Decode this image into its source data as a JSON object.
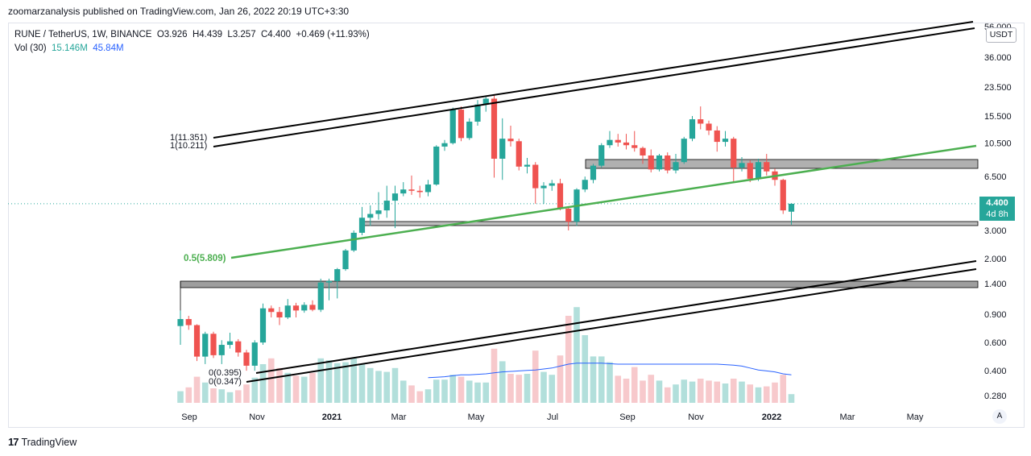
{
  "header": {
    "published": "zoomarzanalysis published on TradingView.com, Jan 26, 2022 20:19 UTC+3:30"
  },
  "legend": {
    "symbol": "RUNE / TetherUS, 1W, BINANCE",
    "open": "O3.926",
    "high": "H4.439",
    "low": "L3.257",
    "close": "C4.400",
    "change": "+0.469 (+11.93%)",
    "vol_label": "Vol (30)",
    "vol_value": "15.146M",
    "vol_ma": "45.84M"
  },
  "currency_button": "USDT",
  "auto_button": "A",
  "price_tag": {
    "price": "4.400",
    "countdown": "4d 8h"
  },
  "footer": {
    "brand": "TradingView"
  },
  "colors": {
    "up": "#26a69a",
    "down": "#ef5350",
    "up_vol": "#b2dfdb",
    "down_vol": "#f7c9cc",
    "channel": "#000000",
    "trend": "#4caf50",
    "vol_ma": "#2962ff",
    "zone": "#9e9e9e"
  },
  "chart_data": {
    "type": "candlestick",
    "scale": "log",
    "y_ticks": [
      "56.000",
      "36.000",
      "23.500",
      "15.500",
      "10.500",
      "6.500",
      "4.400",
      "3.000",
      "2.000",
      "1.400",
      "0.900",
      "0.600",
      "0.400",
      "0.280"
    ],
    "x_ticks": [
      {
        "label": "Sep",
        "bold": false
      },
      {
        "label": "Nov",
        "bold": false
      },
      {
        "label": "2021",
        "bold": true
      },
      {
        "label": "Mar",
        "bold": false
      },
      {
        "label": "May",
        "bold": false
      },
      {
        "label": "Jul",
        "bold": false
      },
      {
        "label": "Sep",
        "bold": false
      },
      {
        "label": "Nov",
        "bold": false
      },
      {
        "label": "2022",
        "bold": true
      },
      {
        "label": "Mar",
        "bold": false
      },
      {
        "label": "May",
        "bold": false
      }
    ],
    "annotations": {
      "fib_top_1": "1(11.351)",
      "fib_top_2": "1(10.211)",
      "fib_mid": "0.5(5.809)",
      "fib_bot_1": "0(0.395)",
      "fib_bot_2": "0(0.347)"
    },
    "candles": [
      {
        "o": 0.76,
        "h": 0.95,
        "l": 0.58,
        "c": 0.84,
        "v": 12
      },
      {
        "o": 0.84,
        "h": 0.88,
        "l": 0.72,
        "c": 0.77,
        "v": 16
      },
      {
        "o": 0.77,
        "h": 0.78,
        "l": 0.46,
        "c": 0.49,
        "v": 27
      },
      {
        "o": 0.49,
        "h": 0.7,
        "l": 0.44,
        "c": 0.68,
        "v": 21
      },
      {
        "o": 0.68,
        "h": 0.7,
        "l": 0.48,
        "c": 0.5,
        "v": 15
      },
      {
        "o": 0.5,
        "h": 0.62,
        "l": 0.44,
        "c": 0.58,
        "v": 14
      },
      {
        "o": 0.58,
        "h": 0.69,
        "l": 0.55,
        "c": 0.61,
        "v": 11
      },
      {
        "o": 0.61,
        "h": 0.63,
        "l": 0.49,
        "c": 0.52,
        "v": 13
      },
      {
        "o": 0.52,
        "h": 0.54,
        "l": 0.4,
        "c": 0.43,
        "v": 19
      },
      {
        "o": 0.43,
        "h": 0.62,
        "l": 0.4,
        "c": 0.6,
        "v": 26
      },
      {
        "o": 0.6,
        "h": 1.05,
        "l": 0.58,
        "c": 0.98,
        "v": 40
      },
      {
        "o": 0.98,
        "h": 1.02,
        "l": 0.86,
        "c": 0.93,
        "v": 46
      },
      {
        "o": 0.93,
        "h": 1.0,
        "l": 0.77,
        "c": 0.86,
        "v": 36
      },
      {
        "o": 0.86,
        "h": 1.12,
        "l": 0.84,
        "c": 1.02,
        "v": 31
      },
      {
        "o": 1.02,
        "h": 1.06,
        "l": 0.86,
        "c": 0.95,
        "v": 28
      },
      {
        "o": 0.95,
        "h": 1.07,
        "l": 0.92,
        "c": 1.03,
        "v": 27
      },
      {
        "o": 1.03,
        "h": 1.1,
        "l": 0.94,
        "c": 0.96,
        "v": 31
      },
      {
        "o": 0.96,
        "h": 1.5,
        "l": 0.93,
        "c": 1.42,
        "v": 46
      },
      {
        "o": 1.42,
        "h": 1.5,
        "l": 1.1,
        "c": 1.45,
        "v": 44
      },
      {
        "o": 1.45,
        "h": 1.75,
        "l": 1.13,
        "c": 1.72,
        "v": 41
      },
      {
        "o": 1.72,
        "h": 2.3,
        "l": 1.68,
        "c": 2.25,
        "v": 42
      },
      {
        "o": 2.25,
        "h": 3.0,
        "l": 2.2,
        "c": 2.9,
        "v": 46
      },
      {
        "o": 2.9,
        "h": 4.2,
        "l": 2.8,
        "c": 3.6,
        "v": 40
      },
      {
        "o": 3.6,
        "h": 4.3,
        "l": 3.2,
        "c": 3.8,
        "v": 36
      },
      {
        "o": 3.8,
        "h": 5.2,
        "l": 3.5,
        "c": 4.0,
        "v": 33
      },
      {
        "o": 4.0,
        "h": 5.7,
        "l": 3.6,
        "c": 4.6,
        "v": 32
      },
      {
        "o": 4.6,
        "h": 5.7,
        "l": 3.1,
        "c": 5.1,
        "v": 36
      },
      {
        "o": 5.1,
        "h": 6.0,
        "l": 4.9,
        "c": 5.4,
        "v": 23
      },
      {
        "o": 5.4,
        "h": 6.6,
        "l": 5.0,
        "c": 5.3,
        "v": 18
      },
      {
        "o": 5.3,
        "h": 5.7,
        "l": 4.8,
        "c": 5.2,
        "v": 12
      },
      {
        "o": 5.2,
        "h": 6.2,
        "l": 4.9,
        "c": 5.8,
        "v": 14
      },
      {
        "o": 5.8,
        "h": 10.2,
        "l": 5.7,
        "c": 10.0,
        "v": 24
      },
      {
        "o": 10.0,
        "h": 11.0,
        "l": 9.4,
        "c": 10.5,
        "v": 24
      },
      {
        "o": 10.5,
        "h": 17.5,
        "l": 10.3,
        "c": 17.0,
        "v": 29
      },
      {
        "o": 17.0,
        "h": 17.8,
        "l": 10.8,
        "c": 11.3,
        "v": 27
      },
      {
        "o": 11.3,
        "h": 15.0,
        "l": 11.0,
        "c": 14.3,
        "v": 23
      },
      {
        "o": 14.3,
        "h": 19.5,
        "l": 13.5,
        "c": 18.3,
        "v": 21
      },
      {
        "o": 18.3,
        "h": 20.5,
        "l": 16.5,
        "c": 19.9,
        "v": 21
      },
      {
        "o": 19.9,
        "h": 21.0,
        "l": 6.4,
        "c": 8.4,
        "v": 56
      },
      {
        "o": 8.4,
        "h": 15.0,
        "l": 6.2,
        "c": 11.2,
        "v": 43
      },
      {
        "o": 11.2,
        "h": 13.5,
        "l": 10.0,
        "c": 10.8,
        "v": 30
      },
      {
        "o": 10.8,
        "h": 11.2,
        "l": 7.1,
        "c": 7.5,
        "v": 29
      },
      {
        "o": 7.5,
        "h": 8.5,
        "l": 6.8,
        "c": 7.7,
        "v": 30
      },
      {
        "o": 7.7,
        "h": 8.0,
        "l": 4.4,
        "c": 5.5,
        "v": 54
      },
      {
        "o": 5.5,
        "h": 6.0,
        "l": 4.4,
        "c": 5.7,
        "v": 32
      },
      {
        "o": 5.7,
        "h": 6.2,
        "l": 5.3,
        "c": 5.9,
        "v": 29
      },
      {
        "o": 5.9,
        "h": 6.3,
        "l": 4.0,
        "c": 4.1,
        "v": 49
      },
      {
        "o": 4.1,
        "h": 4.2,
        "l": 3.0,
        "c": 3.4,
        "v": 90
      },
      {
        "o": 3.4,
        "h": 5.5,
        "l": 3.2,
        "c": 5.4,
        "v": 99
      },
      {
        "o": 5.4,
        "h": 6.5,
        "l": 5.2,
        "c": 6.2,
        "v": 70
      },
      {
        "o": 6.2,
        "h": 7.8,
        "l": 5.9,
        "c": 7.6,
        "v": 48
      },
      {
        "o": 7.6,
        "h": 10.5,
        "l": 7.4,
        "c": 10.2,
        "v": 48
      },
      {
        "o": 10.2,
        "h": 12.5,
        "l": 9.8,
        "c": 11.0,
        "v": 42
      },
      {
        "o": 11.0,
        "h": 12.0,
        "l": 10.0,
        "c": 10.6,
        "v": 28
      },
      {
        "o": 10.6,
        "h": 12.0,
        "l": 9.6,
        "c": 10.2,
        "v": 25
      },
      {
        "o": 10.2,
        "h": 12.5,
        "l": 9.3,
        "c": 9.8,
        "v": 37
      },
      {
        "o": 9.8,
        "h": 10.0,
        "l": 7.8,
        "c": 8.8,
        "v": 23
      },
      {
        "o": 8.8,
        "h": 9.6,
        "l": 6.9,
        "c": 7.2,
        "v": 29
      },
      {
        "o": 7.2,
        "h": 9.0,
        "l": 7.0,
        "c": 8.8,
        "v": 23
      },
      {
        "o": 8.8,
        "h": 9.2,
        "l": 6.8,
        "c": 7.1,
        "v": 16
      },
      {
        "o": 7.1,
        "h": 9.0,
        "l": 6.8,
        "c": 8.0,
        "v": 19
      },
      {
        "o": 8.0,
        "h": 11.5,
        "l": 7.8,
        "c": 11.2,
        "v": 24
      },
      {
        "o": 11.2,
        "h": 15.5,
        "l": 10.8,
        "c": 14.8,
        "v": 22
      },
      {
        "o": 14.8,
        "h": 17.8,
        "l": 12.8,
        "c": 13.9,
        "v": 25
      },
      {
        "o": 13.9,
        "h": 14.5,
        "l": 11.8,
        "c": 12.6,
        "v": 23
      },
      {
        "o": 12.6,
        "h": 13.4,
        "l": 9.3,
        "c": 10.7,
        "v": 22
      },
      {
        "o": 10.7,
        "h": 12.5,
        "l": 10.0,
        "c": 11.2,
        "v": 20
      },
      {
        "o": 11.2,
        "h": 11.5,
        "l": 6.0,
        "c": 7.4,
        "v": 25
      },
      {
        "o": 7.4,
        "h": 8.6,
        "l": 7.0,
        "c": 7.9,
        "v": 22
      },
      {
        "o": 7.9,
        "h": 8.2,
        "l": 6.0,
        "c": 6.3,
        "v": 19
      },
      {
        "o": 6.3,
        "h": 8.4,
        "l": 6.1,
        "c": 8.0,
        "v": 16
      },
      {
        "o": 8.0,
        "h": 9.0,
        "l": 6.6,
        "c": 7.0,
        "v": 17
      },
      {
        "o": 7.0,
        "h": 7.3,
        "l": 5.7,
        "c": 6.2,
        "v": 21
      },
      {
        "o": 6.2,
        "h": 6.3,
        "l": 3.8,
        "c": 4.0,
        "v": 29
      },
      {
        "o": 3.926,
        "h": 4.439,
        "l": 3.257,
        "c": 4.4,
        "v": 9
      }
    ],
    "vol_ma": [
      null,
      null,
      null,
      null,
      null,
      null,
      null,
      null,
      null,
      null,
      null,
      null,
      null,
      null,
      null,
      null,
      null,
      null,
      null,
      null,
      null,
      null,
      null,
      null,
      null,
      null,
      null,
      null,
      null,
      null,
      26,
      26.5,
      27,
      28,
      29,
      29,
      29.5,
      30,
      31,
      32,
      32.5,
      33,
      33.5,
      34,
      35,
      36,
      38,
      40,
      41,
      41,
      41,
      41,
      40.5,
      40,
      40,
      40,
      40,
      40,
      40,
      40,
      40,
      40,
      40,
      40,
      40,
      40,
      39.5,
      39,
      38,
      36,
      34,
      33,
      32,
      30,
      29
    ]
  }
}
